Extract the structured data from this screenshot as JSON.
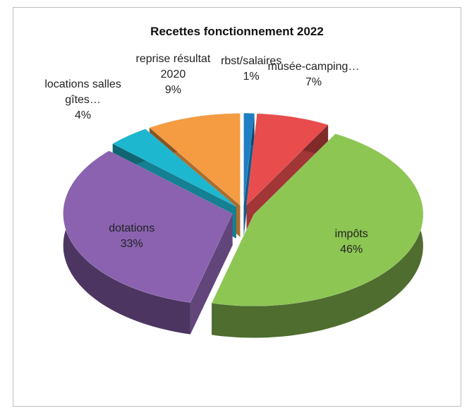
{
  "chart_data": {
    "type": "pie3d",
    "title": "Recettes fonctionnement 2022",
    "categories": [
      "rbst/salaires",
      "musée-camping…",
      "impôts",
      "dotations",
      "locations salles gîtes…",
      "reprise résultat 2020"
    ],
    "values": [
      1,
      7,
      46,
      33,
      4,
      9
    ],
    "value_labels": [
      "1%",
      "7%",
      "46%",
      "33%",
      "4%",
      "9%"
    ],
    "colors": [
      "#1f7fc4",
      "#e84c4c",
      "#8dc653",
      "#8a62b0",
      "#1db7d0",
      "#f59b42"
    ]
  }
}
